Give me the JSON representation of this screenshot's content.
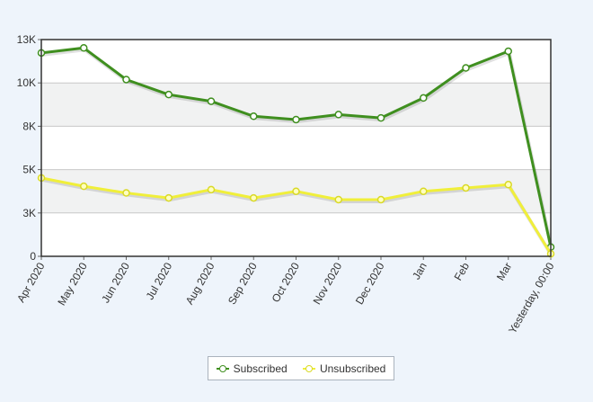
{
  "chart_data": {
    "type": "line",
    "categories": [
      "Apr 2020",
      "May 2020",
      "Jun 2020",
      "Jul 2020",
      "Aug 2020",
      "Sep 2020",
      "Oct 2020",
      "Nov 2020",
      "Dec 2020",
      "Jan",
      "Feb",
      "Mar",
      "Yesterday, 00:00"
    ],
    "series": [
      {
        "name": "Subscribed",
        "color": "#3f8f1f",
        "values": [
          12200,
          12500,
          10600,
          9700,
          9300,
          8400,
          8200,
          8500,
          8300,
          9500,
          11300,
          12300,
          550
        ]
      },
      {
        "name": "Unsubscribed",
        "color": "#f0ef3a",
        "values": [
          4700,
          4200,
          3800,
          3500,
          4000,
          3500,
          3900,
          3400,
          3400,
          3900,
          4100,
          4300,
          150
        ]
      }
    ],
    "ylim": [
      0,
      13000
    ],
    "yticks": [
      0,
      2600,
      5200,
      7800,
      10400,
      13000
    ],
    "ytick_labels": [
      "0",
      "3K",
      "5K",
      "8K",
      "10K",
      "13K"
    ],
    "grid": true,
    "legend_position": "bottom-center"
  }
}
